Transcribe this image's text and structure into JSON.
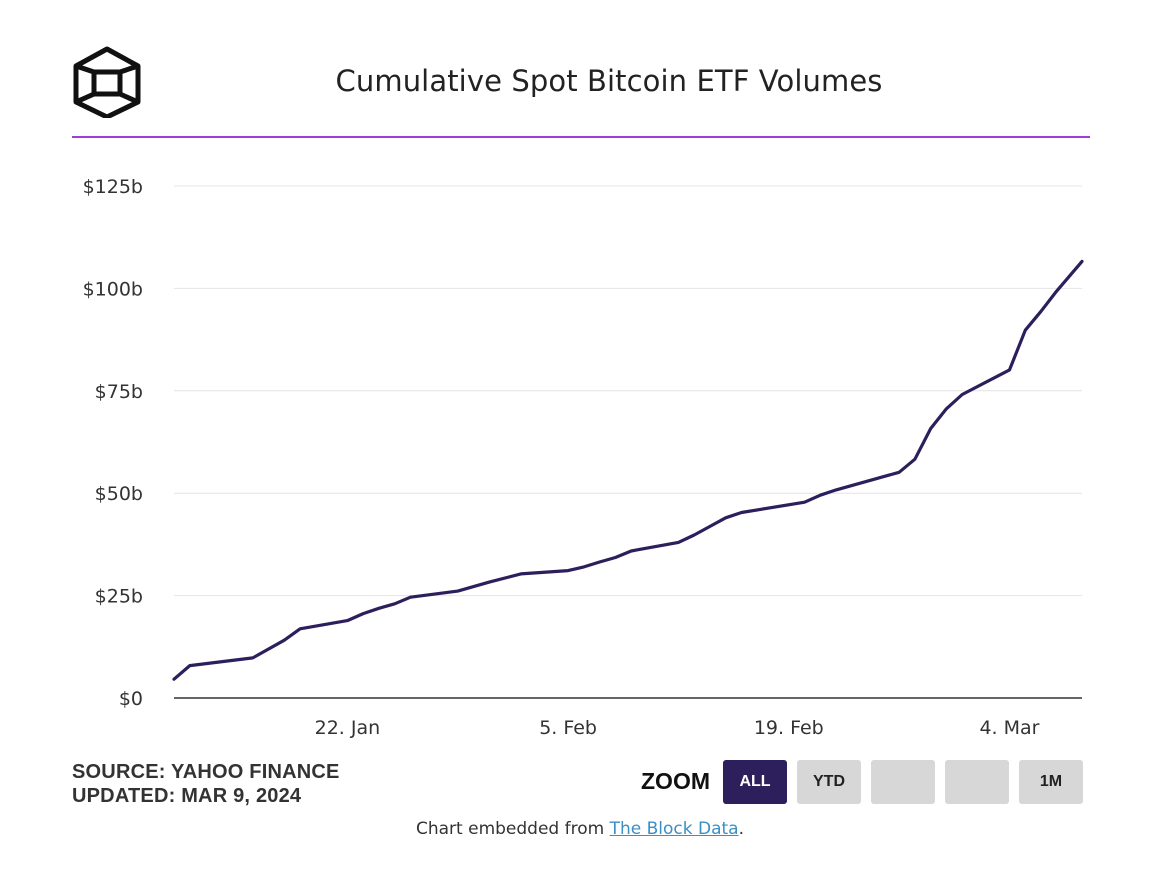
{
  "brand": {
    "logo_icon": "the-block-cube-logo-icon"
  },
  "header": {
    "title": "Cumulative Spot Bitcoin ETF Volumes",
    "accent_color": "#9b3fd6"
  },
  "chart_data": {
    "type": "line",
    "title": "Cumulative Spot Bitcoin ETF Volumes",
    "xlabel": "",
    "ylabel": "",
    "y_unit": "billion USD",
    "ylim": [
      0,
      125
    ],
    "yticks": [
      0,
      25,
      50,
      75,
      100,
      125
    ],
    "ytick_labels": [
      "$0",
      "$25b",
      "$50b",
      "$75b",
      "$100b",
      "$125b"
    ],
    "x_range_days": [
      0,
      57.6
    ],
    "x_start_date": "11. Jan 2024",
    "xticks": [
      {
        "day": 11,
        "label": "22. Jan"
      },
      {
        "day": 25,
        "label": "5. Feb"
      },
      {
        "day": 39,
        "label": "19. Feb"
      },
      {
        "day": 53,
        "label": "4. Mar"
      }
    ],
    "grid": true,
    "legend": "none",
    "line_color": "#2c1f5c",
    "series": [
      {
        "name": "Cumulative Spot Bitcoin ETF Volume",
        "points": [
          [
            0,
            4.6
          ],
          [
            1,
            7.9
          ],
          [
            5,
            9.8
          ],
          [
            7,
            14.1
          ],
          [
            8,
            16.9
          ],
          [
            11,
            18.9
          ],
          [
            12,
            20.6
          ],
          [
            13,
            21.9
          ],
          [
            14,
            23.0
          ],
          [
            15,
            24.6
          ],
          [
            18,
            26.1
          ],
          [
            20,
            28.3
          ],
          [
            22,
            30.3
          ],
          [
            25,
            31.1
          ],
          [
            26,
            32.0
          ],
          [
            27,
            33.2
          ],
          [
            28,
            34.3
          ],
          [
            29,
            35.9
          ],
          [
            32,
            38.0
          ],
          [
            33,
            39.8
          ],
          [
            34,
            41.9
          ],
          [
            35,
            44.0
          ],
          [
            36,
            45.3
          ],
          [
            40,
            47.8
          ],
          [
            41,
            49.5
          ],
          [
            42,
            50.8
          ],
          [
            46,
            55.1
          ],
          [
            47,
            58.3
          ],
          [
            48,
            65.8
          ],
          [
            49,
            70.6
          ],
          [
            50,
            74.1
          ],
          [
            53,
            80.1
          ],
          [
            54,
            89.8
          ],
          [
            55,
            94.4
          ],
          [
            56,
            99.4
          ],
          [
            57.6,
            106.6
          ]
        ]
      }
    ]
  },
  "meta": {
    "source_label": "SOURCE: YAHOO FINANCE",
    "updated_label": "UPDATED: MAR 9, 2024"
  },
  "zoom": {
    "label": "ZOOM",
    "buttons": [
      {
        "key": "all",
        "label": "ALL",
        "active": true
      },
      {
        "key": "ytd",
        "label": "YTD",
        "active": false
      },
      {
        "key": "blank1",
        "label": "",
        "active": false
      },
      {
        "key": "blank2",
        "label": "",
        "active": false
      },
      {
        "key": "1m",
        "label": "1M",
        "active": false
      }
    ],
    "active_color": "#2c1f5c",
    "inactive_color": "#d7d7d7"
  },
  "footer": {
    "prefix": "Chart embedded from ",
    "link_text": "The Block Data",
    "suffix": ".",
    "link_color": "#3a8fc7"
  }
}
